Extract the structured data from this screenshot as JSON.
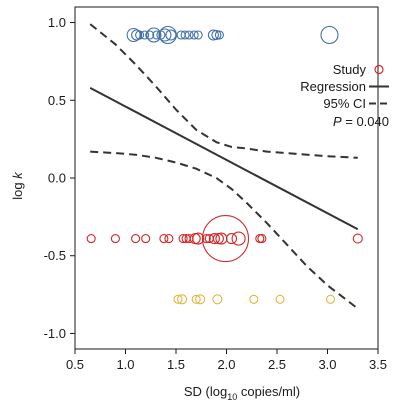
{
  "chart_data": {
    "type": "scatter",
    "xlabel": "SD (log",
    "xlabel_sub": "10",
    "xlabel_suffix": " copies/ml)",
    "ylabel": "log",
    "ylabel_italic": "k",
    "xlim": [
      0.5,
      3.5
    ],
    "ylim": [
      -1.1,
      1.1
    ],
    "xticks": [
      0.5,
      1.0,
      1.5,
      2.0,
      2.5,
      3.0,
      3.5
    ],
    "xtick_labels": [
      "0.5",
      "1.0",
      "1.5",
      "2.0",
      "2.5",
      "3.0",
      "3.5"
    ],
    "yticks": [
      -1.0,
      -0.5,
      0.0,
      0.5,
      1.0
    ],
    "ytick_labels": [
      "-1.0",
      "-0.5",
      "0.0",
      "0.5",
      "1.0"
    ],
    "grid": false,
    "legend_position": "top-right",
    "legend": {
      "study": "Study",
      "regression": "Regression",
      "ci": "95% CI",
      "p_prefix": "P",
      "p_value": " = 0.040"
    },
    "colors": {
      "blue": "#3f6fa8",
      "red": "#d42a2a",
      "yellow": "#e2b43a",
      "line": "#333333"
    },
    "regression": {
      "x": [
        0.65,
        3.3
      ],
      "y": [
        0.58,
        -0.33
      ]
    },
    "ci_upper": {
      "x": [
        0.65,
        0.9,
        1.1,
        1.3,
        1.5,
        1.7,
        1.9,
        2.05,
        2.2,
        2.4,
        2.6,
        2.8,
        3.0,
        3.3
      ],
      "y": [
        0.99,
        0.86,
        0.73,
        0.59,
        0.44,
        0.31,
        0.23,
        0.2,
        0.19,
        0.17,
        0.16,
        0.15,
        0.14,
        0.13
      ]
    },
    "ci_lower": {
      "x": [
        0.65,
        0.9,
        1.1,
        1.3,
        1.5,
        1.7,
        1.9,
        2.05,
        2.2,
        2.4,
        2.6,
        2.8,
        3.0,
        3.3
      ],
      "y": [
        0.17,
        0.16,
        0.15,
        0.13,
        0.1,
        0.06,
        0.0,
        -0.07,
        -0.16,
        -0.29,
        -0.43,
        -0.57,
        -0.69,
        -0.84
      ]
    },
    "series": [
      {
        "color_key": "blue",
        "points": [
          {
            "x": 1.08,
            "y": 0.92,
            "r": 1.3
          },
          {
            "x": 1.11,
            "y": 0.92,
            "r": 1.0
          },
          {
            "x": 1.14,
            "y": 0.92,
            "r": 0.8
          },
          {
            "x": 1.19,
            "y": 0.92,
            "r": 0.8
          },
          {
            "x": 1.24,
            "y": 0.92,
            "r": 0.8
          },
          {
            "x": 1.28,
            "y": 0.92,
            "r": 1.4
          },
          {
            "x": 1.31,
            "y": 0.92,
            "r": 0.8
          },
          {
            "x": 1.35,
            "y": 0.92,
            "r": 0.8
          },
          {
            "x": 1.39,
            "y": 0.92,
            "r": 1.2
          },
          {
            "x": 1.42,
            "y": 0.92,
            "r": 1.7
          },
          {
            "x": 1.45,
            "y": 0.92,
            "r": 1.0
          },
          {
            "x": 1.55,
            "y": 0.92,
            "r": 0.8
          },
          {
            "x": 1.59,
            "y": 0.92,
            "r": 0.8
          },
          {
            "x": 1.63,
            "y": 0.92,
            "r": 0.8
          },
          {
            "x": 1.68,
            "y": 0.92,
            "r": 0.8
          },
          {
            "x": 1.72,
            "y": 0.92,
            "r": 0.8
          },
          {
            "x": 1.87,
            "y": 0.92,
            "r": 1.0
          },
          {
            "x": 1.9,
            "y": 0.92,
            "r": 0.9
          },
          {
            "x": 1.93,
            "y": 0.92,
            "r": 0.8
          },
          {
            "x": 3.02,
            "y": 0.92,
            "r": 1.7
          }
        ]
      },
      {
        "color_key": "red",
        "points": [
          {
            "x": 0.66,
            "y": -0.39,
            "r": 0.8
          },
          {
            "x": 0.9,
            "y": -0.39,
            "r": 0.8
          },
          {
            "x": 1.1,
            "y": -0.39,
            "r": 0.8
          },
          {
            "x": 1.2,
            "y": -0.39,
            "r": 0.8
          },
          {
            "x": 1.38,
            "y": -0.39,
            "r": 0.8
          },
          {
            "x": 1.43,
            "y": -0.39,
            "r": 0.8
          },
          {
            "x": 1.57,
            "y": -0.39,
            "r": 0.8
          },
          {
            "x": 1.6,
            "y": -0.39,
            "r": 0.8
          },
          {
            "x": 1.63,
            "y": -0.39,
            "r": 0.8
          },
          {
            "x": 1.69,
            "y": -0.39,
            "r": 1.0
          },
          {
            "x": 1.72,
            "y": -0.39,
            "r": 1.1
          },
          {
            "x": 1.8,
            "y": -0.39,
            "r": 0.8
          },
          {
            "x": 1.83,
            "y": -0.39,
            "r": 0.8
          },
          {
            "x": 1.88,
            "y": -0.39,
            "r": 1.0
          },
          {
            "x": 1.92,
            "y": -0.39,
            "r": 1.0
          },
          {
            "x": 1.95,
            "y": -0.39,
            "r": 1.1
          },
          {
            "x": 1.99,
            "y": -0.39,
            "r": 4.6
          },
          {
            "x": 2.05,
            "y": -0.39,
            "r": 1.0
          },
          {
            "x": 2.12,
            "y": -0.39,
            "r": 1.3
          },
          {
            "x": 2.33,
            "y": -0.39,
            "r": 0.8
          },
          {
            "x": 2.35,
            "y": -0.39,
            "r": 0.8
          },
          {
            "x": 3.3,
            "y": -0.39,
            "r": 0.9
          }
        ]
      },
      {
        "color_key": "yellow",
        "points": [
          {
            "x": 1.52,
            "y": -0.78,
            "r": 0.8
          },
          {
            "x": 1.56,
            "y": -0.78,
            "r": 0.9
          },
          {
            "x": 1.7,
            "y": -0.78,
            "r": 0.8
          },
          {
            "x": 1.74,
            "y": -0.78,
            "r": 0.9
          },
          {
            "x": 1.91,
            "y": -0.78,
            "r": 0.9
          },
          {
            "x": 2.27,
            "y": -0.78,
            "r": 0.8
          },
          {
            "x": 2.53,
            "y": -0.78,
            "r": 0.8
          },
          {
            "x": 3.03,
            "y": -0.78,
            "r": 0.8
          }
        ]
      }
    ]
  }
}
